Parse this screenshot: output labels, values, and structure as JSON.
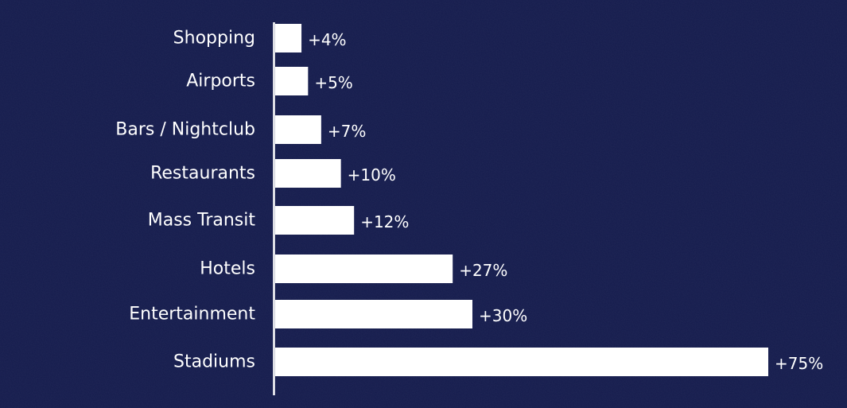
{
  "colors": {
    "background": "#141b4d",
    "bar": "#ffffff",
    "text": "#ffffff",
    "axis": "#ffffff"
  },
  "chart_data": {
    "type": "bar",
    "orientation": "horizontal",
    "categories": [
      "Shopping",
      "Airports",
      "Bars / Nightclub",
      "Restaurants",
      "Mass Transit",
      "Hotels",
      "Entertainment",
      "Stadiums"
    ],
    "values": [
      4,
      5,
      7,
      10,
      12,
      27,
      30,
      75
    ],
    "data_labels": [
      "+4%",
      "+5%",
      "+7%",
      "+10%",
      "+12%",
      "+27%",
      "+30%",
      "+75%"
    ],
    "title": "",
    "xlabel": "",
    "ylabel": "",
    "xlim": [
      0,
      75
    ],
    "grid": false,
    "legend": "none"
  }
}
